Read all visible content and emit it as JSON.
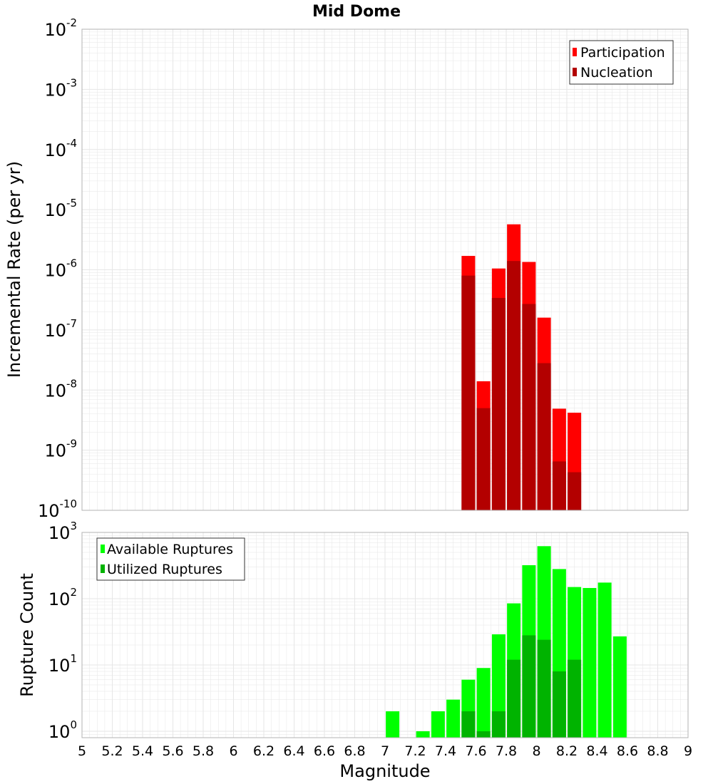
{
  "title": "Mid Dome",
  "xlabel": "Magnitude",
  "x_ticks": [
    "5",
    "5.2",
    "5.4",
    "5.6",
    "5.8",
    "6",
    "6.2",
    "6.4",
    "6.6",
    "6.8",
    "7",
    "7.2",
    "7.4",
    "7.6",
    "7.8",
    "8",
    "8.2",
    "8.4",
    "8.6",
    "8.8",
    "9"
  ],
  "colors": {
    "participation": "#ff0000",
    "nucleation": "#b30000",
    "available": "#00ff00",
    "utilized": "#00b300",
    "grid": "#e6e6e6",
    "frame": "#b3b3b3"
  },
  "chart_data": [
    {
      "type": "bar",
      "ylabel": "Incremental Rate (per yr)",
      "y_scale": "log",
      "ylim": [
        1e-10,
        0.01
      ],
      "xlim": [
        5,
        9
      ],
      "y_ticks": [
        {
          "value": 1e-10,
          "base": "10",
          "exp": "-10"
        },
        {
          "value": 1e-09,
          "base": "10",
          "exp": "-9"
        },
        {
          "value": 1e-08,
          "base": "10",
          "exp": "-8"
        },
        {
          "value": 1e-07,
          "base": "10",
          "exp": "-7"
        },
        {
          "value": 1e-06,
          "base": "10",
          "exp": "-6"
        },
        {
          "value": 1e-05,
          "base": "10",
          "exp": "-5"
        },
        {
          "value": 0.0001,
          "base": "10",
          "exp": "-4"
        },
        {
          "value": 0.001,
          "base": "10",
          "exp": "-3"
        },
        {
          "value": 0.01,
          "base": "10",
          "exp": "-2"
        }
      ],
      "legend_position": "top-right",
      "x": [
        7.55,
        7.65,
        7.75,
        7.85,
        7.95,
        8.05,
        8.15,
        8.25
      ],
      "series": [
        {
          "name": "Participation",
          "color_key": "participation",
          "values": [
            1.7e-06,
            1.4e-08,
            1.05e-06,
            5.7e-06,
            1.35e-06,
            1.6e-07,
            4.9e-09,
            4.2e-09
          ]
        },
        {
          "name": "Nucleation",
          "color_key": "nucleation",
          "values": [
            8e-07,
            5e-09,
            3.4e-07,
            1.4e-06,
            2.7e-07,
            2.8e-08,
            6.5e-10,
            4.3e-10
          ]
        }
      ]
    },
    {
      "type": "bar",
      "ylabel": "Rupture Count",
      "y_scale": "log",
      "ylim": [
        0.8,
        1000
      ],
      "xlim": [
        5,
        9
      ],
      "y_ticks": [
        {
          "value": 1,
          "base": "10",
          "exp": "0"
        },
        {
          "value": 10,
          "base": "10",
          "exp": "1"
        },
        {
          "value": 100,
          "base": "10",
          "exp": "2"
        },
        {
          "value": 1000,
          "base": "10",
          "exp": "3"
        }
      ],
      "legend_position": "top-left",
      "x": [
        7.05,
        7.25,
        7.35,
        7.45,
        7.55,
        7.65,
        7.75,
        7.85,
        7.95,
        8.05,
        8.15,
        8.25,
        8.35,
        8.45,
        8.55
      ],
      "series": [
        {
          "name": "Available Ruptures",
          "color_key": "available",
          "values": [
            2,
            1,
            2,
            3,
            6,
            9,
            29,
            85,
            320,
            620,
            280,
            150,
            145,
            175,
            27
          ]
        },
        {
          "name": "Utilized Ruptures",
          "color_key": "utilized",
          "values": [
            null,
            null,
            null,
            null,
            2,
            1,
            2,
            12,
            28,
            24,
            8,
            12,
            null,
            null,
            null
          ]
        }
      ]
    }
  ]
}
